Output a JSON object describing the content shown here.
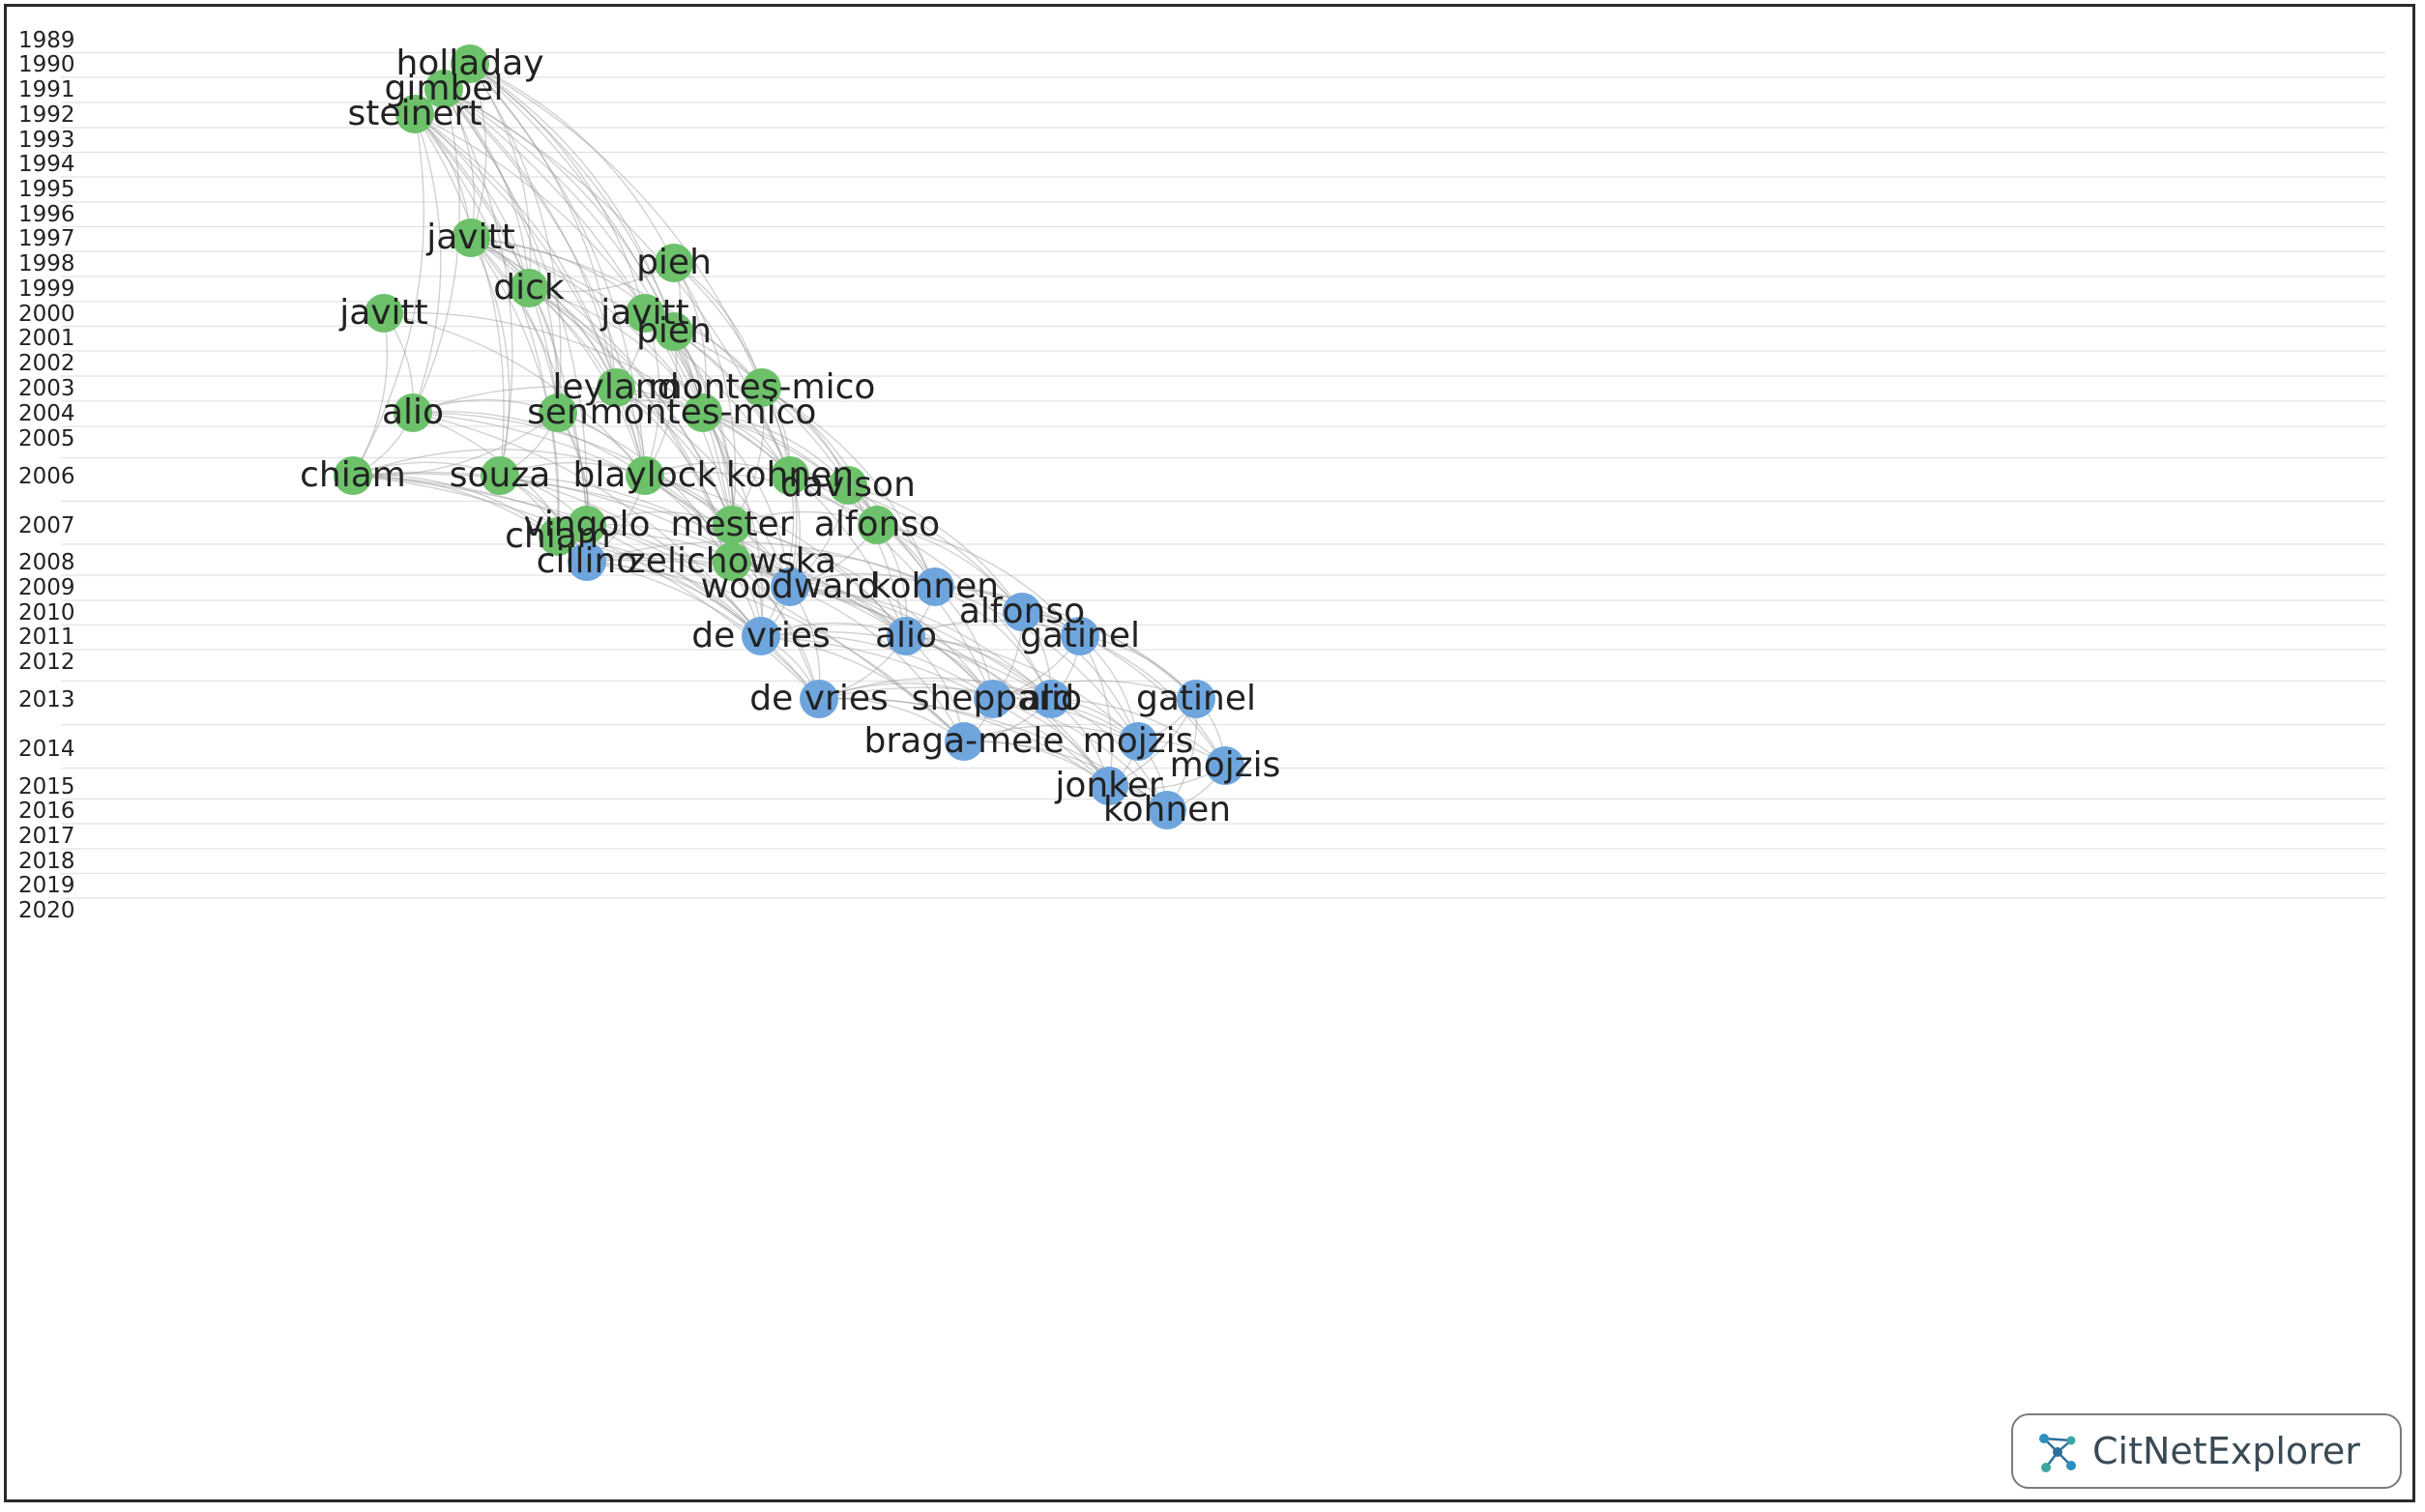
{
  "app": {
    "logo_text": "CitNetExplorer"
  },
  "colors": {
    "cluster_1": "#6cc16a",
    "cluster_2": "#6ea5dd",
    "edge": "#9a9a9a",
    "grid": "#e2e2e2",
    "year_text": "#222222"
  },
  "timeline": {
    "years": [
      1989,
      1990,
      1991,
      1992,
      1993,
      1994,
      1995,
      1996,
      1997,
      1998,
      1999,
      2000,
      2001,
      2002,
      2003,
      2004,
      2005,
      2006,
      2007,
      2008,
      2009,
      2010,
      2011,
      2012,
      2013,
      2014,
      2015,
      2016,
      2017,
      2018,
      2019,
      2020
    ]
  },
  "network": {
    "nodes": [
      {
        "id": "n1",
        "label": "holladay",
        "year": 1990,
        "cluster": 1
      },
      {
        "id": "n2",
        "label": "gimbel",
        "year": 1991,
        "cluster": 1
      },
      {
        "id": "n3",
        "label": "steinert",
        "year": 1992,
        "cluster": 1
      },
      {
        "id": "n4",
        "label": "javitt",
        "year": 1997,
        "cluster": 1
      },
      {
        "id": "n5",
        "label": "pieh",
        "year": 1998,
        "cluster": 1
      },
      {
        "id": "n6",
        "label": "dick",
        "year": 1999,
        "cluster": 1
      },
      {
        "id": "n7",
        "label": "javitt",
        "year": 2000,
        "cluster": 1
      },
      {
        "id": "n8",
        "label": "javitt",
        "year": 2000,
        "cluster": 1
      },
      {
        "id": "n9",
        "label": "pieh",
        "year": 2001,
        "cluster": 1
      },
      {
        "id": "n10",
        "label": "leyland",
        "year": 2003,
        "cluster": 1
      },
      {
        "id": "n11",
        "label": "montes-mico",
        "year": 2003,
        "cluster": 1
      },
      {
        "id": "n12",
        "label": "alio",
        "year": 2004,
        "cluster": 1
      },
      {
        "id": "n13",
        "label": "sen",
        "year": 2004,
        "cluster": 1
      },
      {
        "id": "n14",
        "label": "montes-mico",
        "year": 2004,
        "cluster": 1
      },
      {
        "id": "n15",
        "label": "chiam",
        "year": 2006,
        "cluster": 1
      },
      {
        "id": "n16",
        "label": "souza",
        "year": 2006,
        "cluster": 1
      },
      {
        "id": "n17",
        "label": "blaylock",
        "year": 2006,
        "cluster": 1
      },
      {
        "id": "n18",
        "label": "kohnen",
        "year": 2006,
        "cluster": 1
      },
      {
        "id": "n19",
        "label": "davison",
        "year": 2006,
        "cluster": 1
      },
      {
        "id": "n20",
        "label": "vingolo",
        "year": 2007,
        "cluster": 1
      },
      {
        "id": "n21",
        "label": "mester",
        "year": 2007,
        "cluster": 1
      },
      {
        "id": "n22",
        "label": "alfonso",
        "year": 2007,
        "cluster": 1
      },
      {
        "id": "n23",
        "label": "chiam",
        "year": 2007,
        "cluster": 1
      },
      {
        "id": "n24",
        "label": "cillino",
        "year": 2008,
        "cluster": 2
      },
      {
        "id": "n25",
        "label": "zelichowska",
        "year": 2008,
        "cluster": 1
      },
      {
        "id": "n26",
        "label": "woodward",
        "year": 2009,
        "cluster": 2
      },
      {
        "id": "n27",
        "label": "kohnen",
        "year": 2009,
        "cluster": 2
      },
      {
        "id": "n28",
        "label": "alfonso",
        "year": 2010,
        "cluster": 2
      },
      {
        "id": "n29",
        "label": "de vries",
        "year": 2011,
        "cluster": 2
      },
      {
        "id": "n30",
        "label": "alio",
        "year": 2011,
        "cluster": 2
      },
      {
        "id": "n31",
        "label": "gatinel",
        "year": 2011,
        "cluster": 2
      },
      {
        "id": "n32",
        "label": "de vries",
        "year": 2013,
        "cluster": 2
      },
      {
        "id": "n33",
        "label": "sheppard",
        "year": 2013,
        "cluster": 2
      },
      {
        "id": "n34",
        "label": "gatinel",
        "year": 2013,
        "cluster": 2
      },
      {
        "id": "n35",
        "label": "alio",
        "year": 2013,
        "cluster": 2
      },
      {
        "id": "n36",
        "label": "braga-mele",
        "year": 2014,
        "cluster": 2
      },
      {
        "id": "n37",
        "label": "mojzis",
        "year": 2014,
        "cluster": 2
      },
      {
        "id": "n38",
        "label": "mojzis",
        "year": 2014,
        "cluster": 2
      },
      {
        "id": "n39",
        "label": "jonker",
        "year": 2015,
        "cluster": 2
      },
      {
        "id": "n40",
        "label": "kohnen",
        "year": 2016,
        "cluster": 2
      }
    ],
    "edges": [
      [
        "n1",
        "n3"
      ],
      [
        "n1",
        "n4"
      ],
      [
        "n1",
        "n6"
      ],
      [
        "n1",
        "n5"
      ],
      [
        "n1",
        "n10"
      ],
      [
        "n1",
        "n13"
      ],
      [
        "n1",
        "n17"
      ],
      [
        "n1",
        "n21"
      ],
      [
        "n1",
        "n11"
      ],
      [
        "n1",
        "n14"
      ],
      [
        "n1",
        "n9"
      ],
      [
        "n1",
        "n7"
      ],
      [
        "n2",
        "n4"
      ],
      [
        "n2",
        "n6"
      ],
      [
        "n2",
        "n10"
      ],
      [
        "n2",
        "n13"
      ],
      [
        "n2",
        "n17"
      ],
      [
        "n2",
        "n20"
      ],
      [
        "n2",
        "n21"
      ],
      [
        "n2",
        "n18"
      ],
      [
        "n2",
        "n12"
      ],
      [
        "n2",
        "n16"
      ],
      [
        "n2",
        "n14"
      ],
      [
        "n2",
        "n9"
      ],
      [
        "n3",
        "n4"
      ],
      [
        "n3",
        "n12"
      ],
      [
        "n3",
        "n15"
      ],
      [
        "n3",
        "n16"
      ],
      [
        "n3",
        "n23"
      ],
      [
        "n3",
        "n17"
      ],
      [
        "n3",
        "n13"
      ],
      [
        "n3",
        "n20"
      ],
      [
        "n3",
        "n14"
      ],
      [
        "n3",
        "n10"
      ],
      [
        "n3",
        "n6"
      ],
      [
        "n4",
        "n6"
      ],
      [
        "n4",
        "n10"
      ],
      [
        "n4",
        "n13"
      ],
      [
        "n4",
        "n17"
      ],
      [
        "n4",
        "n21"
      ],
      [
        "n4",
        "n18"
      ],
      [
        "n4",
        "n14"
      ],
      [
        "n4",
        "n20"
      ],
      [
        "n4",
        "n25"
      ],
      [
        "n4",
        "n23"
      ],
      [
        "n4",
        "n16"
      ],
      [
        "n4",
        "n9"
      ],
      [
        "n4",
        "n11"
      ],
      [
        "n5",
        "n9"
      ],
      [
        "n5",
        "n14"
      ],
      [
        "n5",
        "n21"
      ],
      [
        "n5",
        "n18"
      ],
      [
        "n5",
        "n6"
      ],
      [
        "n5",
        "n11"
      ],
      [
        "n6",
        "n10"
      ],
      [
        "n6",
        "n14"
      ],
      [
        "n6",
        "n17"
      ],
      [
        "n6",
        "n21"
      ],
      [
        "n6",
        "n25"
      ],
      [
        "n6",
        "n13"
      ],
      [
        "n7",
        "n9"
      ],
      [
        "n7",
        "n14"
      ],
      [
        "n7",
        "n17"
      ],
      [
        "n7",
        "n18"
      ],
      [
        "n7",
        "n21"
      ],
      [
        "n7",
        "n11"
      ],
      [
        "n7",
        "n10"
      ],
      [
        "n8",
        "n12"
      ],
      [
        "n8",
        "n15"
      ],
      [
        "n8",
        "n17"
      ],
      [
        "n8",
        "n14"
      ],
      [
        "n9",
        "n21"
      ],
      [
        "n9",
        "n18"
      ],
      [
        "n9",
        "n25"
      ],
      [
        "n9",
        "n14"
      ],
      [
        "n9",
        "n17"
      ],
      [
        "n9",
        "n22"
      ],
      [
        "n10",
        "n17"
      ],
      [
        "n10",
        "n21"
      ],
      [
        "n10",
        "n25"
      ],
      [
        "n10",
        "n18"
      ],
      [
        "n10",
        "n26"
      ],
      [
        "n11",
        "n18"
      ],
      [
        "n11",
        "n19"
      ],
      [
        "n11",
        "n22"
      ],
      [
        "n11",
        "n21"
      ],
      [
        "n11",
        "n26"
      ],
      [
        "n11",
        "n30"
      ],
      [
        "n11",
        "n27"
      ],
      [
        "n12",
        "n13"
      ],
      [
        "n12",
        "n14"
      ],
      [
        "n12",
        "n17"
      ],
      [
        "n12",
        "n15"
      ],
      [
        "n12",
        "n24"
      ],
      [
        "n12",
        "n29"
      ],
      [
        "n12",
        "n21"
      ],
      [
        "n12",
        "n26"
      ],
      [
        "n13",
        "n14"
      ],
      [
        "n13",
        "n17"
      ],
      [
        "n13",
        "n20"
      ],
      [
        "n13",
        "n25"
      ],
      [
        "n13",
        "n15"
      ],
      [
        "n13",
        "n16"
      ],
      [
        "n13",
        "n24"
      ],
      [
        "n14",
        "n18"
      ],
      [
        "n14",
        "n21"
      ],
      [
        "n14",
        "n22"
      ],
      [
        "n14",
        "n25"
      ],
      [
        "n14",
        "n26"
      ],
      [
        "n14",
        "n19"
      ],
      [
        "n14",
        "n30"
      ],
      [
        "n14",
        "n27"
      ],
      [
        "n14",
        "n29"
      ],
      [
        "n15",
        "n16"
      ],
      [
        "n15",
        "n17"
      ],
      [
        "n15",
        "n24"
      ],
      [
        "n15",
        "n26"
      ],
      [
        "n15",
        "n29"
      ],
      [
        "n15",
        "n32"
      ],
      [
        "n15",
        "n30"
      ],
      [
        "n15",
        "n23"
      ],
      [
        "n15",
        "n36"
      ],
      [
        "n16",
        "n17"
      ],
      [
        "n16",
        "n23"
      ],
      [
        "n16",
        "n24"
      ],
      [
        "n16",
        "n26"
      ],
      [
        "n16",
        "n29"
      ],
      [
        "n16",
        "n20"
      ],
      [
        "n17",
        "n18"
      ],
      [
        "n17",
        "n21"
      ],
      [
        "n17",
        "n25"
      ],
      [
        "n17",
        "n26"
      ],
      [
        "n17",
        "n29"
      ],
      [
        "n17",
        "n30"
      ],
      [
        "n17",
        "n22"
      ],
      [
        "n17",
        "n24"
      ],
      [
        "n17",
        "n32"
      ],
      [
        "n18",
        "n19"
      ],
      [
        "n18",
        "n22"
      ],
      [
        "n18",
        "n26"
      ],
      [
        "n18",
        "n27"
      ],
      [
        "n18",
        "n29"
      ],
      [
        "n18",
        "n33"
      ],
      [
        "n18",
        "n28"
      ],
      [
        "n19",
        "n22"
      ],
      [
        "n19",
        "n27"
      ],
      [
        "n19",
        "n28"
      ],
      [
        "n19",
        "n26"
      ],
      [
        "n20",
        "n23"
      ],
      [
        "n20",
        "n24"
      ],
      [
        "n20",
        "n26"
      ],
      [
        "n20",
        "n29"
      ],
      [
        "n20",
        "n21"
      ],
      [
        "n21",
        "n25"
      ],
      [
        "n21",
        "n26"
      ],
      [
        "n21",
        "n30"
      ],
      [
        "n21",
        "n33"
      ],
      [
        "n21",
        "n29"
      ],
      [
        "n21",
        "n22"
      ],
      [
        "n22",
        "n26"
      ],
      [
        "n22",
        "n27"
      ],
      [
        "n22",
        "n28"
      ],
      [
        "n22",
        "n30"
      ],
      [
        "n22",
        "n31"
      ],
      [
        "n22",
        "n35"
      ],
      [
        "n23",
        "n24"
      ],
      [
        "n23",
        "n26"
      ],
      [
        "n23",
        "n29"
      ],
      [
        "n23",
        "n32"
      ],
      [
        "n24",
        "n26"
      ],
      [
        "n24",
        "n29"
      ],
      [
        "n24",
        "n30"
      ],
      [
        "n24",
        "n32"
      ],
      [
        "n24",
        "n27"
      ],
      [
        "n24",
        "n36"
      ],
      [
        "n24",
        "n35"
      ],
      [
        "n25",
        "n26"
      ],
      [
        "n25",
        "n29"
      ],
      [
        "n25",
        "n30"
      ],
      [
        "n25",
        "n32"
      ],
      [
        "n25",
        "n33"
      ],
      [
        "n25",
        "n27"
      ],
      [
        "n26",
        "n27"
      ],
      [
        "n26",
        "n29"
      ],
      [
        "n26",
        "n30"
      ],
      [
        "n26",
        "n32"
      ],
      [
        "n26",
        "n33"
      ],
      [
        "n26",
        "n35"
      ],
      [
        "n26",
        "n36"
      ],
      [
        "n26",
        "n39"
      ],
      [
        "n27",
        "n28"
      ],
      [
        "n27",
        "n30"
      ],
      [
        "n27",
        "n31"
      ],
      [
        "n27",
        "n33"
      ],
      [
        "n27",
        "n35"
      ],
      [
        "n27",
        "n34"
      ],
      [
        "n27",
        "n37"
      ],
      [
        "n28",
        "n31"
      ],
      [
        "n28",
        "n33"
      ],
      [
        "n28",
        "n35"
      ],
      [
        "n28",
        "n34"
      ],
      [
        "n28",
        "n37"
      ],
      [
        "n28",
        "n38"
      ],
      [
        "n29",
        "n30"
      ],
      [
        "n29",
        "n32"
      ],
      [
        "n29",
        "n33"
      ],
      [
        "n29",
        "n36"
      ],
      [
        "n29",
        "n39"
      ],
      [
        "n29",
        "n35"
      ],
      [
        "n30",
        "n32"
      ],
      [
        "n30",
        "n33"
      ],
      [
        "n30",
        "n35"
      ],
      [
        "n30",
        "n36"
      ],
      [
        "n30",
        "n37"
      ],
      [
        "n30",
        "n39"
      ],
      [
        "n30",
        "n31"
      ],
      [
        "n31",
        "n34"
      ],
      [
        "n31",
        "n35"
      ],
      [
        "n31",
        "n37"
      ],
      [
        "n31",
        "n38"
      ],
      [
        "n31",
        "n39"
      ],
      [
        "n31",
        "n33"
      ],
      [
        "n32",
        "n33"
      ],
      [
        "n32",
        "n36"
      ],
      [
        "n32",
        "n39"
      ],
      [
        "n32",
        "n40"
      ],
      [
        "n32",
        "n35"
      ],
      [
        "n32",
        "n37"
      ],
      [
        "n33",
        "n35"
      ],
      [
        "n33",
        "n36"
      ],
      [
        "n33",
        "n37"
      ],
      [
        "n33",
        "n39"
      ],
      [
        "n33",
        "n34"
      ],
      [
        "n33",
        "n40"
      ],
      [
        "n34",
        "n37"
      ],
      [
        "n34",
        "n38"
      ],
      [
        "n34",
        "n39"
      ],
      [
        "n34",
        "n40"
      ],
      [
        "n35",
        "n37"
      ],
      [
        "n35",
        "n39"
      ],
      [
        "n35",
        "n40"
      ],
      [
        "n35",
        "n38"
      ],
      [
        "n35",
        "n36"
      ],
      [
        "n36",
        "n39"
      ],
      [
        "n36",
        "n40"
      ],
      [
        "n36",
        "n37"
      ],
      [
        "n37",
        "n38"
      ],
      [
        "n37",
        "n39"
      ],
      [
        "n37",
        "n40"
      ],
      [
        "n38",
        "n39"
      ],
      [
        "n38",
        "n40"
      ],
      [
        "n39",
        "n40"
      ]
    ]
  }
}
